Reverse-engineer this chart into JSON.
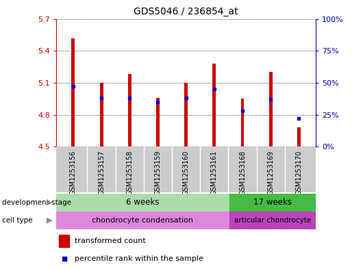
{
  "title": "GDS5046 / 236854_at",
  "samples": [
    "GSM1253156",
    "GSM1253157",
    "GSM1253158",
    "GSM1253159",
    "GSM1253160",
    "GSM1253161",
    "GSM1253168",
    "GSM1253169",
    "GSM1253170"
  ],
  "transformed_count": [
    5.52,
    5.1,
    5.18,
    4.96,
    5.1,
    5.28,
    4.95,
    5.2,
    4.68
  ],
  "percentile_rank": [
    47,
    38,
    38,
    35,
    38,
    45,
    28,
    37,
    22
  ],
  "ylim_left": [
    4.5,
    5.7
  ],
  "ylim_right": [
    0,
    100
  ],
  "yticks_left": [
    4.5,
    4.8,
    5.1,
    5.4,
    5.7
  ],
  "yticks_right": [
    0,
    25,
    50,
    75,
    100
  ],
  "bar_color": "#cc0000",
  "dot_color": "#0000cc",
  "baseline": 4.5,
  "six_weeks_color": "#aaddaa",
  "seventeen_weeks_color": "#44bb44",
  "chondro_condensation_color": "#dd88dd",
  "articular_chondrocyte_color": "#bb44bb",
  "background_color": "#ffffff",
  "xlabel_color": "#cc0000",
  "ylabel_right_color": "#0000bb",
  "sample_bg_color": "#cccccc",
  "sample_divider_color": "#ffffff"
}
